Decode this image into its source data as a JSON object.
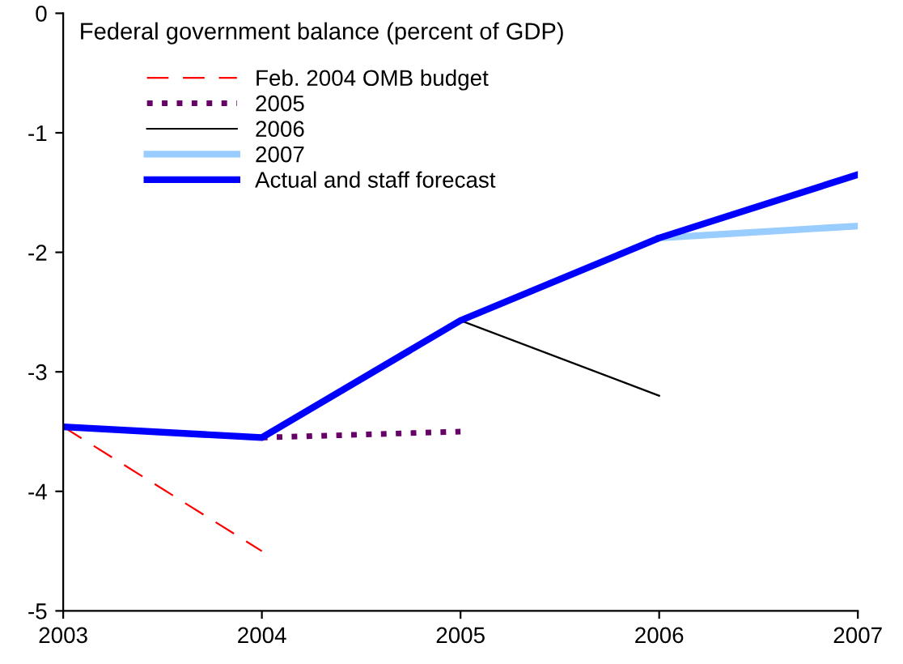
{
  "chart_data": {
    "type": "line",
    "title": "Federal government balance (percent of GDP)",
    "xlim": [
      2003,
      2007
    ],
    "xticks": [
      2003,
      2004,
      2005,
      2006,
      2007
    ],
    "ylim": [
      -5,
      0
    ],
    "yticks": [
      -5,
      -4,
      -3,
      -2,
      -1,
      0
    ],
    "grid": false,
    "legend": "top left",
    "marker": "none",
    "series": [
      {
        "name": "Feb. 2004 OMB budget",
        "color": "#ff0000",
        "x": [
          2003,
          2004
        ],
        "values": [
          -3.46,
          -4.5
        ],
        "line_style": "dashed"
      },
      {
        "name": "2005",
        "color": "#660066",
        "x": [
          2004,
          2005
        ],
        "values": [
          -3.55,
          -3.5
        ],
        "line_style": "dotted"
      },
      {
        "name": "2006",
        "color": "#000000",
        "x": [
          2005,
          2006
        ],
        "values": [
          -2.57,
          -3.2
        ],
        "line_style": "solid"
      },
      {
        "name": "2007",
        "color": "#99ccff",
        "x": [
          2006,
          2007
        ],
        "values": [
          -1.88,
          -1.78
        ],
        "line_style": "solid"
      },
      {
        "name": "Actual and staff forecast",
        "color": "#0000ff",
        "x": [
          2003,
          2004,
          2005,
          2006,
          2007
        ],
        "values": [
          -3.46,
          -3.55,
          -2.57,
          -1.88,
          -1.35
        ],
        "line_style": "solid"
      }
    ]
  }
}
